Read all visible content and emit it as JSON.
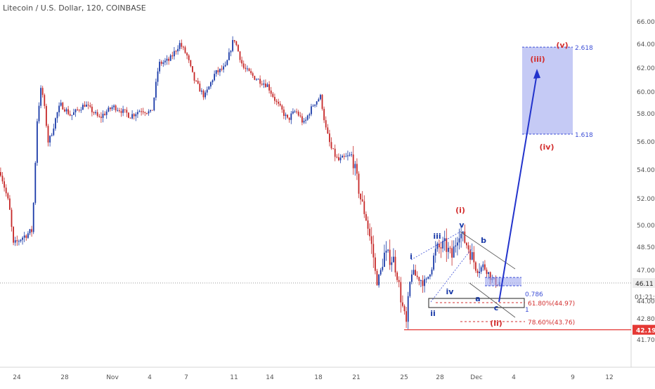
{
  "title": "Litecoin / U.S. Dollar, 120, COINBASE",
  "chart_data": {
    "type": "candlestick",
    "y_ticks": [
      41.7,
      42.8,
      44.0,
      45.3,
      47.0,
      48.5,
      50.0,
      52.0,
      54.0,
      56.0,
      58.0,
      60.0,
      62.0,
      64.0,
      66.0
    ],
    "x_ticks": [
      "24",
      "28",
      "Nov",
      "4",
      "7",
      "11",
      "14",
      "18",
      "21",
      "25",
      "28",
      "Dec",
      "4",
      "9",
      "12"
    ],
    "price_tags": {
      "last": "46.11",
      "countdown": "01:21:44",
      "low": "42.19"
    },
    "low_line": 42.19,
    "fib_levels": [
      {
        "label": "0.786",
        "value": 46.0
      },
      {
        "label": "1",
        "value": 45.3
      },
      {
        "label": "61.80%(44.97)",
        "value": 44.97
      },
      {
        "label": "78.60%(43.76)",
        "value": 43.76
      },
      {
        "label": "1.618",
        "value": 56.5
      },
      {
        "label": "2.618",
        "value": 63.7
      }
    ],
    "target_box": {
      "y_low": 56.5,
      "y_high": 63.7
    },
    "wave_labels": [
      {
        "text": "(i)",
        "color": "#d32f2f"
      },
      {
        "text": "(ii)",
        "color": "#d32f2f"
      },
      {
        "text": "(iii)",
        "color": "#d32f2f"
      },
      {
        "text": "(iv)",
        "color": "#d32f2f"
      },
      {
        "text": "(v)",
        "color": "#d32f2f"
      },
      {
        "text": "i",
        "color": "#1a3aa8"
      },
      {
        "text": "ii",
        "color": "#1a3aa8"
      },
      {
        "text": "iii",
        "color": "#1a3aa8"
      },
      {
        "text": "iv",
        "color": "#1a3aa8"
      },
      {
        "text": "v",
        "color": "#1a3aa8"
      },
      {
        "text": "a",
        "color": "#1a3aa8"
      },
      {
        "text": "b",
        "color": "#1a3aa8"
      },
      {
        "text": "c",
        "color": "#1a3aa8"
      }
    ],
    "colors": {
      "up": "#1a3aa8",
      "down": "#c62828",
      "projection": "#2233cc",
      "fib": "#d32f2f",
      "box": "#9fa6ee"
    }
  }
}
